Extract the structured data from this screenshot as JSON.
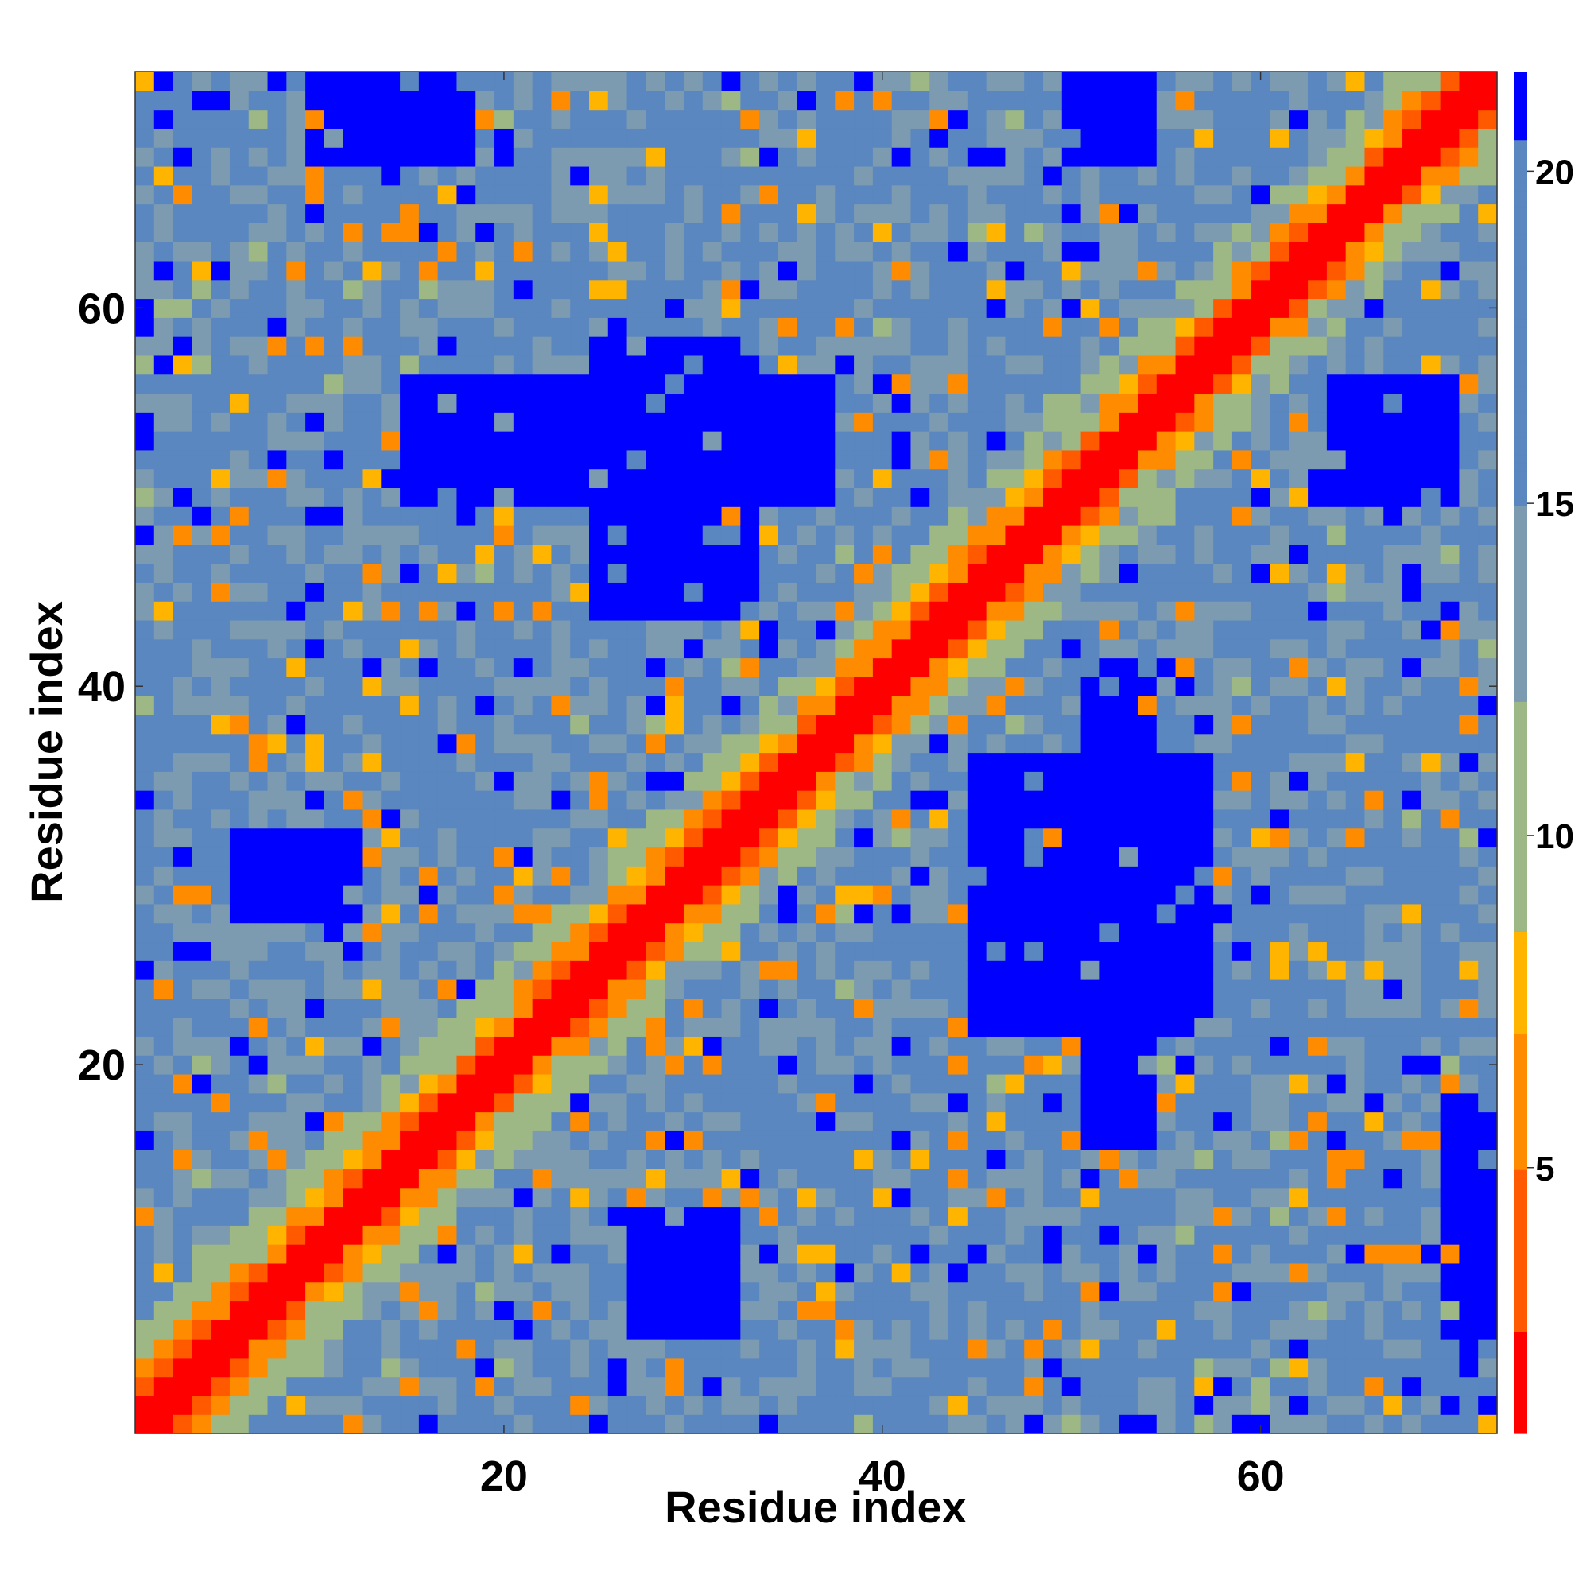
{
  "chart_data": {
    "type": "heatmap",
    "title": "",
    "xlabel": "Residue index",
    "ylabel": "Residue index",
    "n_residues": 72,
    "x_range": [
      1,
      72
    ],
    "y_range": [
      1,
      72
    ],
    "x_ticks": [
      20,
      40,
      60
    ],
    "y_ticks": [
      20,
      40,
      60
    ],
    "x_tick_labels": [
      "20",
      "40",
      "60"
    ],
    "y_tick_labels": [
      "20",
      "40",
      "60"
    ],
    "colorbar": {
      "range": [
        1,
        21.5
      ],
      "ticks": [
        5,
        10,
        15,
        20
      ],
      "tick_labels": [
        "5",
        "10",
        "15",
        "20"
      ],
      "placement": "right"
    },
    "colors": {
      "red": "#ff0000",
      "orange_red": "#ff5a00",
      "orange": "#ff8c00",
      "amber": "#ffb400",
      "sage": "#9db884",
      "grey_blue": "#7c9bb0",
      "steel_blue": "#5a87c0",
      "blue": "#0000ff"
    },
    "description_of_pattern": {
      "diagonal_band_value": 1,
      "near_diagonal_values": [
        4,
        7
      ],
      "blue_blocks": [
        {
          "x": [
            15,
            37
          ],
          "y": [
            50,
            56
          ],
          "value": 21
        },
        {
          "x": [
            25,
            33
          ],
          "y": [
            44,
            58
          ],
          "value": 21
        },
        {
          "x": [
            45,
            57
          ],
          "y": [
            22,
            36
          ],
          "value": 21
        },
        {
          "x": [
            51,
            54
          ],
          "y": [
            16,
            40
          ],
          "value": 21
        },
        {
          "x": [
            6,
            12
          ],
          "y": [
            28,
            32
          ],
          "value": 21
        },
        {
          "x": [
            27,
            32
          ],
          "y": [
            6,
            12
          ],
          "value": 21
        },
        {
          "x": [
            10,
            18
          ],
          "y": [
            68,
            72
          ],
          "value": 21
        },
        {
          "x": [
            50,
            54
          ],
          "y": [
            68,
            72
          ],
          "value": 21
        },
        {
          "x": [
            70,
            72
          ],
          "y": [
            6,
            18
          ],
          "value": 21
        },
        {
          "x": [
            64,
            70
          ],
          "y": [
            50,
            56
          ],
          "value": 21
        }
      ]
    }
  }
}
